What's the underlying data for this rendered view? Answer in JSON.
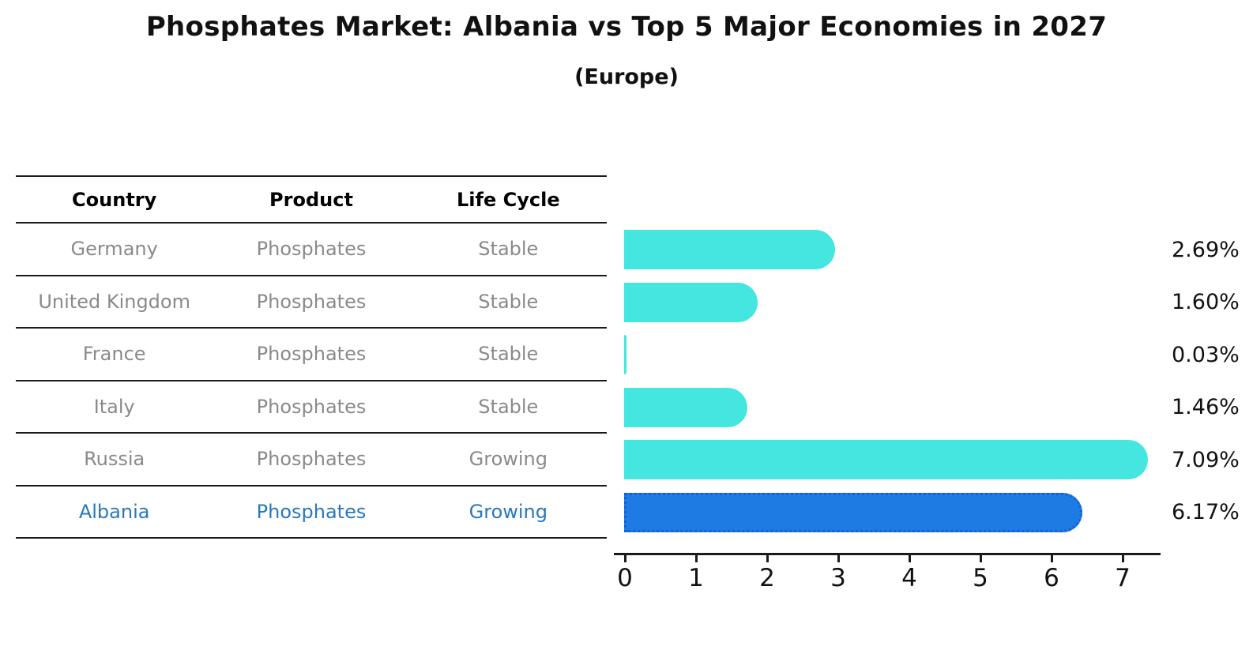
{
  "title": "Phosphates Market: Albania vs Top 5 Major Economies in 2027",
  "subtitle": "(Europe)",
  "table": {
    "headers": [
      "Country",
      "Product",
      "Life Cycle"
    ],
    "highlight_text_color": "#2878be",
    "rows": [
      {
        "country": "Germany",
        "product": "Phosphates",
        "life_cycle": "Stable"
      },
      {
        "country": "United Kingdom",
        "product": "Phosphates",
        "life_cycle": "Stable"
      },
      {
        "country": "France",
        "product": "Phosphates",
        "life_cycle": "Stable"
      },
      {
        "country": "Italy",
        "product": "Phosphates",
        "life_cycle": "Stable"
      },
      {
        "country": "Russia",
        "product": "Phosphates",
        "life_cycle": "Growing"
      },
      {
        "country": "Albania",
        "product": "Phosphates",
        "life_cycle": "Growing"
      }
    ]
  },
  "chart_data": {
    "type": "bar",
    "orientation": "horizontal",
    "title": "Phosphates Market: Albania vs Top 5 Major Economies in 2027",
    "subtitle": "(Europe)",
    "categories": [
      "Germany",
      "United Kingdom",
      "France",
      "Italy",
      "Russia",
      "Albania"
    ],
    "values": [
      2.69,
      1.6,
      0.03,
      1.46,
      7.09,
      6.17
    ],
    "value_labels": [
      "2.69%",
      "1.60%",
      "0.03%",
      "1.46%",
      "7.09%",
      "6.17%"
    ],
    "x_ticks": [
      "0",
      "1",
      "2",
      "3",
      "4",
      "5",
      "6",
      "7"
    ],
    "xlim": [
      0,
      7.5
    ],
    "grid": "off",
    "legend": "none",
    "bar_color": "#45e6e0",
    "highlight_index": 5,
    "highlight_color": "#1e7be4",
    "highlight_border_color": "#1260d6",
    "axis_color": "#1a1a1a"
  }
}
